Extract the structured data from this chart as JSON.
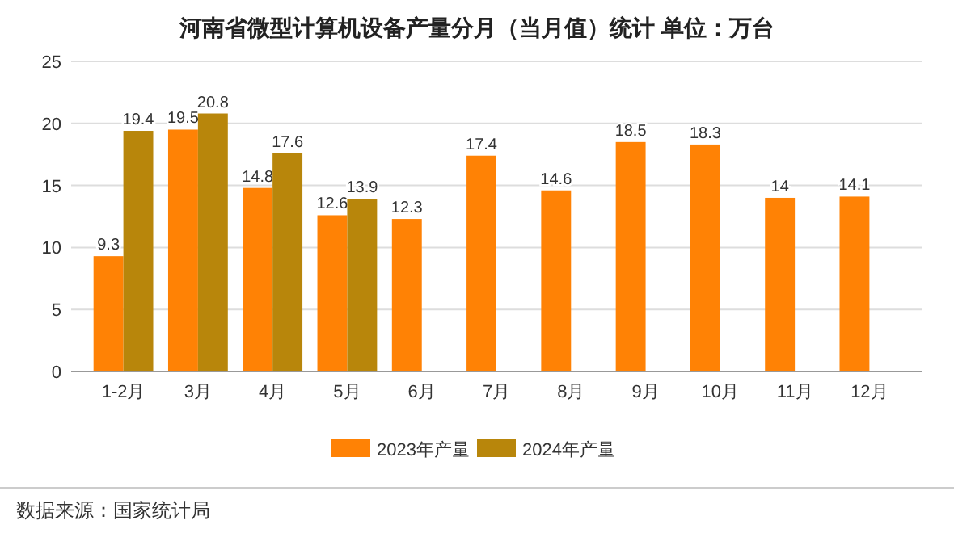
{
  "chart_data": {
    "type": "bar",
    "title": "河南省微型计算机设备产量分月（当月值）统计  单位：万台",
    "categories": [
      "1-2月",
      "3月",
      "4月",
      "5月",
      "6月",
      "7月",
      "8月",
      "9月",
      "10月",
      "11月",
      "12月"
    ],
    "series": [
      {
        "name": "2023年产量",
        "color": "#ff8205",
        "values": [
          9.3,
          19.5,
          14.8,
          12.6,
          12.3,
          17.4,
          14.6,
          18.5,
          18.3,
          14,
          14.1
        ]
      },
      {
        "name": "2024年产量",
        "color": "#b8860b",
        "values": [
          19.4,
          20.8,
          17.6,
          13.9,
          null,
          null,
          null,
          null,
          null,
          null,
          null
        ]
      }
    ],
    "ylim": [
      0,
      25
    ],
    "yticks": [
      0,
      5,
      10,
      15,
      20,
      25
    ],
    "grid": "y",
    "legend": "bottom",
    "data_labels": true,
    "annotations": [
      "数据来源：国家统计局"
    ]
  }
}
